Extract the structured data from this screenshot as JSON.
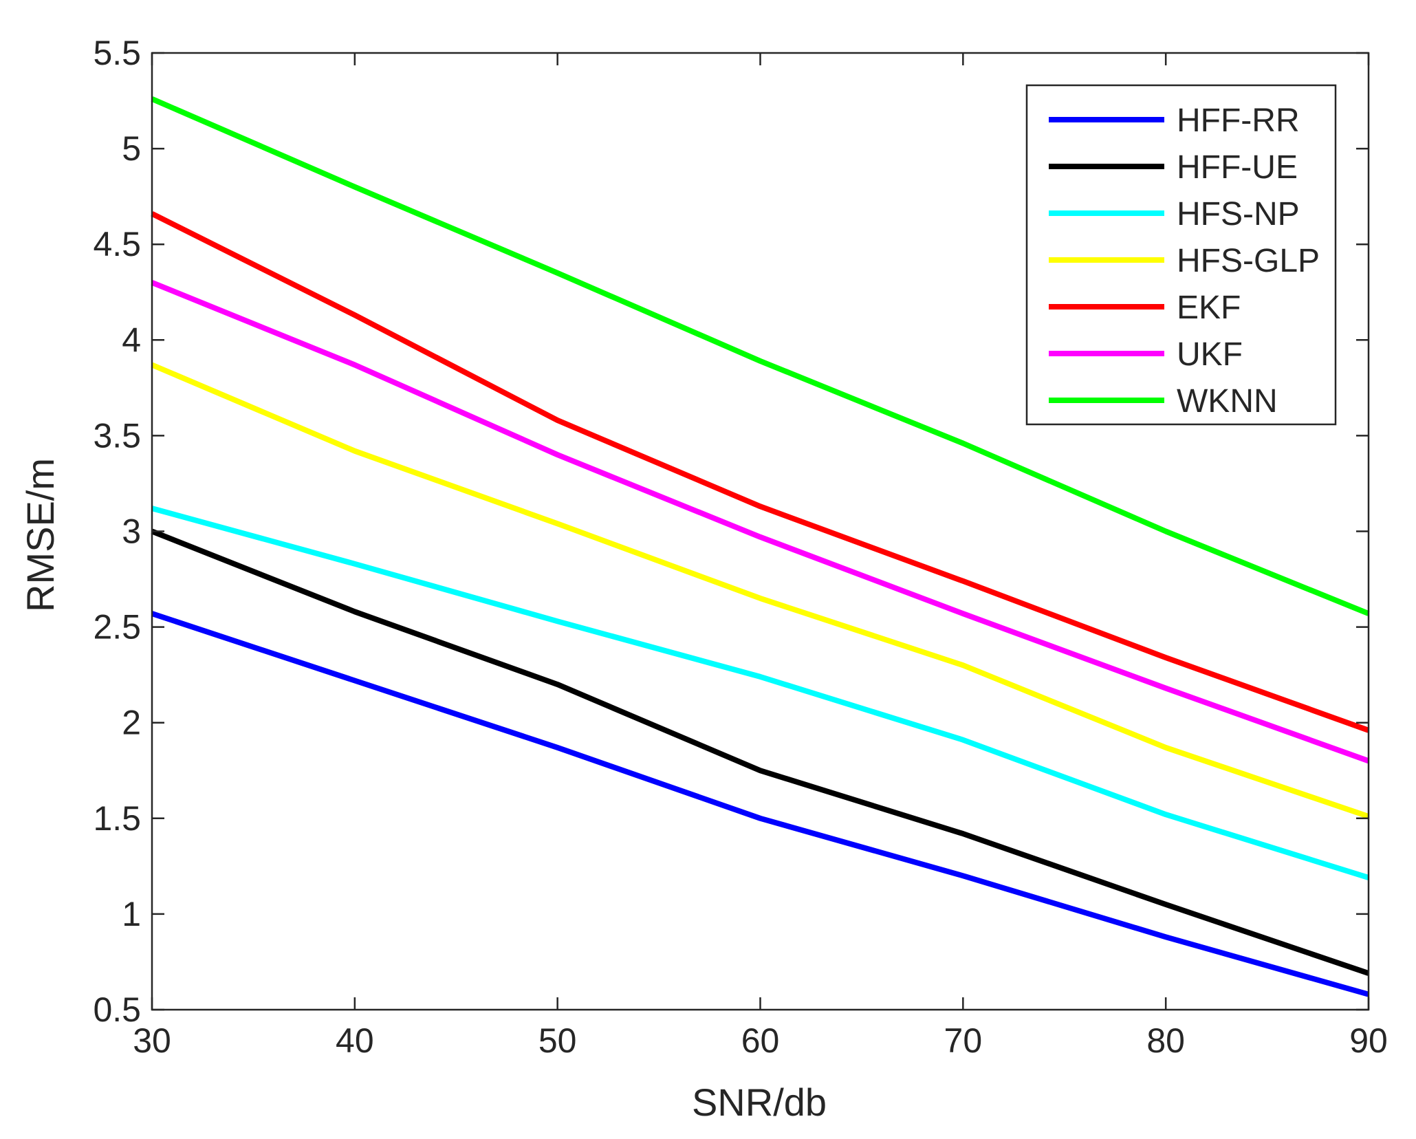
{
  "chart_data": {
    "type": "line",
    "title": "",
    "xlabel": "SNR/db",
    "ylabel": "RMSE/m",
    "xlim": [
      30,
      90
    ],
    "ylim": [
      0.5,
      5.5
    ],
    "xticks": [
      30,
      40,
      50,
      60,
      70,
      80,
      90
    ],
    "yticks": [
      0.5,
      1,
      1.5,
      2,
      2.5,
      3,
      3.5,
      4,
      4.5,
      5,
      5.5
    ],
    "ytick_labels": [
      "0.5",
      "1",
      "1.5",
      "2",
      "2.5",
      "3",
      "3.5",
      "4",
      "4.5",
      "5",
      "5.5"
    ],
    "grid": false,
    "legend_position": "top-right",
    "series": [
      {
        "name": "HFF-RR",
        "color": "#0000ff",
        "x": [
          30,
          40,
          50,
          60,
          70,
          80,
          90
        ],
        "values": [
          2.57,
          2.22,
          1.87,
          1.5,
          1.2,
          0.88,
          0.58
        ]
      },
      {
        "name": "HFF-UE",
        "color": "#000000",
        "x": [
          30,
          40,
          50,
          60,
          70,
          80,
          90
        ],
        "values": [
          3.0,
          2.58,
          2.2,
          1.75,
          1.42,
          1.05,
          0.69
        ]
      },
      {
        "name": "HFS-NP",
        "color": "#00ffff",
        "x": [
          30,
          40,
          50,
          60,
          70,
          80,
          90
        ],
        "values": [
          3.12,
          2.83,
          2.53,
          2.24,
          1.91,
          1.52,
          1.19
        ]
      },
      {
        "name": "HFS-GLP",
        "color": "#ffff00",
        "x": [
          30,
          40,
          50,
          60,
          70,
          80,
          90
        ],
        "values": [
          3.87,
          3.42,
          3.04,
          2.65,
          2.3,
          1.87,
          1.51
        ]
      },
      {
        "name": "EKF",
        "color": "#ff0000",
        "x": [
          30,
          40,
          50,
          60,
          70,
          80,
          90
        ],
        "values": [
          4.66,
          4.13,
          3.58,
          3.13,
          2.74,
          2.34,
          1.96
        ]
      },
      {
        "name": "UKF",
        "color": "#ff00ff",
        "x": [
          30,
          40,
          50,
          60,
          70,
          80,
          90
        ],
        "values": [
          4.3,
          3.87,
          3.4,
          2.97,
          2.57,
          2.18,
          1.8
        ]
      },
      {
        "name": "WKNN",
        "color": "#00ff00",
        "x": [
          30,
          40,
          50,
          60,
          70,
          80,
          90
        ],
        "values": [
          5.26,
          4.8,
          4.35,
          3.89,
          3.46,
          3.0,
          2.57
        ]
      }
    ]
  }
}
